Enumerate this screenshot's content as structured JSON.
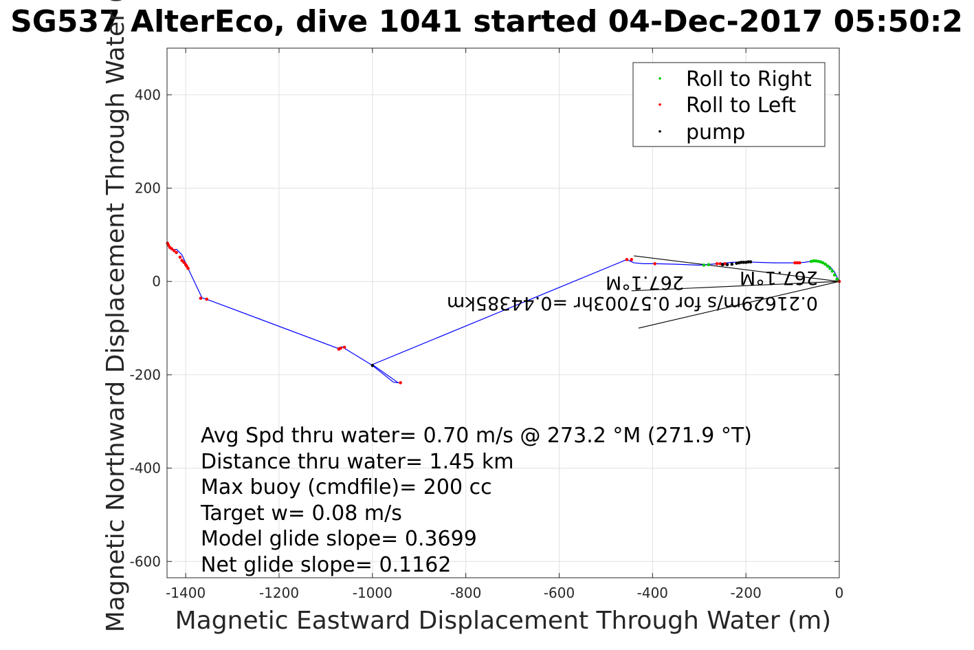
{
  "chart_data": {
    "type": "line",
    "title": "SG537 AlterEco, dive 1041 started 04-Dec-2017 05:50:2",
    "xlabel": "Magnetic Eastward Displacement Through Water (m)",
    "ylabel": "Magnetic Northward Displacement Through Water (",
    "xlim": [
      -1440,
      0
    ],
    "ylim": [
      -635,
      500
    ],
    "grid": true,
    "legend_position": "top-right",
    "xticks": [
      -1400,
      -1200,
      -1000,
      -800,
      -600,
      -400,
      -200,
      0
    ],
    "xtick_labels": [
      "-1400",
      "-1200",
      "-1000",
      "-800",
      "-600",
      "-400",
      "-200",
      "0"
    ],
    "yticks": [
      -600,
      -400,
      -200,
      0,
      200,
      400
    ],
    "ytick_labels": [
      "-600",
      "-400",
      "-200",
      "0",
      "200",
      "400"
    ],
    "legend": [
      {
        "label": "Roll to Right",
        "color": "#00cc00"
      },
      {
        "label": "Roll to Left",
        "color": "#ff0000"
      },
      {
        "label": "pump",
        "color": "#000000"
      }
    ],
    "series": [
      {
        "color": "#0000ff",
        "x": [
          0,
          -10,
          -20,
          -35,
          -55,
          -75,
          -90,
          -110,
          -140,
          -175,
          -200,
          -230,
          -260,
          -300,
          -350,
          -395,
          -420,
          -440,
          -455,
          -1000,
          -945,
          -955,
          -1000,
          -1065,
          -1075,
          -1350,
          -1365,
          -1395,
          -1398,
          -1402,
          -1408,
          -1420,
          -1425,
          -1432,
          -1438
        ],
        "y": [
          0,
          20,
          32,
          40,
          44,
          41,
          40,
          40,
          40,
          41,
          42,
          41,
          38,
          35,
          37,
          38,
          38,
          40,
          47,
          -178,
          -217,
          -216,
          -180,
          -140,
          -143,
          -40,
          -35,
          28,
          35,
          44,
          57,
          69,
          68,
          72,
          80
        ]
      },
      {
        "name": "Roll to Right",
        "color": "#00cc00",
        "x": [
          -5,
          -10,
          -15,
          -20,
          -25,
          -30,
          -35,
          -40,
          -45,
          -50,
          -55,
          -60,
          -280,
          -290
        ],
        "y": [
          5,
          14,
          22,
          28,
          33,
          37,
          40,
          42,
          43,
          44,
          44,
          43,
          36,
          35
        ]
      },
      {
        "name": "Roll to Left",
        "color": "#ff0000",
        "x": [
          0,
          -85,
          -90,
          -95,
          -245,
          -255,
          -262,
          -395,
          -445,
          -455,
          -940,
          -1060,
          -1068,
          -1072,
          -1355,
          -1368,
          -1395,
          -1398,
          -1400,
          -1404,
          -1408,
          -1412,
          -1420,
          -1425,
          -1430,
          -1434,
          -1437,
          -1439
        ],
        "y": [
          0,
          40,
          40,
          40,
          38,
          38,
          38,
          38,
          47,
          47,
          -217,
          -141,
          -143,
          -145,
          -38,
          -36,
          28,
          33,
          36,
          41,
          45,
          52,
          62,
          66,
          70,
          73,
          78,
          82
        ]
      },
      {
        "name": "pump",
        "color": "#000000",
        "x": [
          -190,
          -195,
          -200,
          -205,
          -210,
          -215,
          -220,
          -230,
          -240,
          -250,
          -1000
        ],
        "y": [
          42,
          42,
          41,
          41,
          41,
          40,
          39,
          37,
          36,
          36,
          -180
        ]
      }
    ],
    "current_lines": [
      {
        "x": [
          0,
          -440
        ],
        "y": [
          0,
          55
        ]
      },
      {
        "x": [
          0,
          -430
        ],
        "y": [
          0,
          -100
        ]
      },
      {
        "x": [
          0,
          -445
        ],
        "y": [
          0,
          -20
        ]
      }
    ],
    "annotations": {
      "stats": [
        "Avg Spd thru water=  0.70 m/s @ 273.2 °M (271.9 °T)",
        "Distance thru water=  1.45 km",
        "Max buoy (cmdfile)= 200 cc",
        "Target w= 0.08 m/s",
        "Model glide slope= 0.3699",
        "Net glide slope= 0.1162"
      ],
      "flipped": [
        "0.21629m/s for 0.57003hr =0.44385km",
        "267.1°M",
        "267.1°M"
      ]
    }
  }
}
